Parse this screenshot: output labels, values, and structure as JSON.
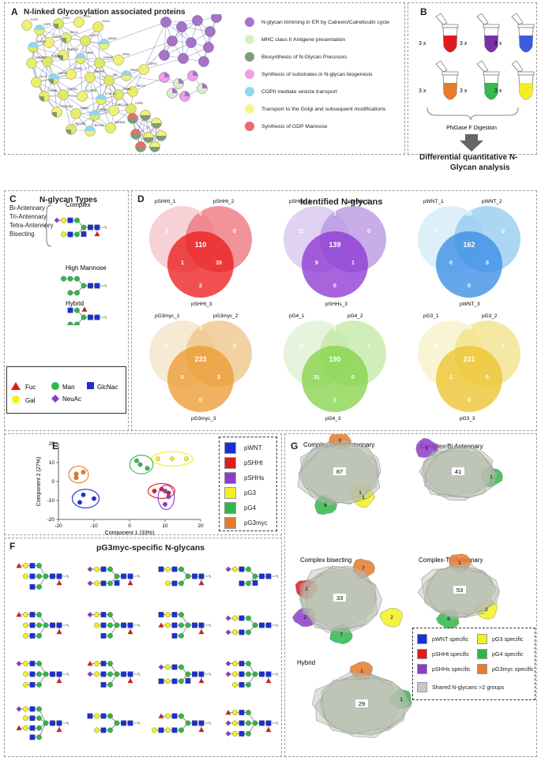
{
  "panelA": {
    "label": "A",
    "title": "N-linked Glycosylation associated proteins",
    "legend": [
      {
        "color": "#a574c9",
        "text": "N-glycan trimming in ER by Calrexin/Calreticulin cycle"
      },
      {
        "color": "#d9f0c6",
        "text": "MHC class II Antigene presentation"
      },
      {
        "color": "#7f9c78",
        "text": "Biosynthesis of N-Glycan Precusors"
      },
      {
        "color": "#ee9fe6",
        "text": "Synthesis of substrates in N-glycan biogenesis"
      },
      {
        "color": "#8fd6ee",
        "text": "COPII mediate vesicle transport"
      },
      {
        "color": "#f4f58a",
        "text": "Transport to the Golgi and subsequent modifications"
      },
      {
        "color": "#ee6b6b",
        "text": "Synthesis of GDP Mannose"
      }
    ],
    "nodes": [
      "FUT8",
      "COPE",
      "COG7",
      "COG4",
      "COG3",
      "FUCA2",
      "MAN1",
      "SEL1L",
      "UGGT1",
      "MOGS",
      "MAN5B1",
      "EDEM1",
      "PRKCSH",
      "TUBA3",
      "GANAB",
      "DPM1",
      "ALG2",
      "GMPPA",
      "DUS1",
      "GMPPB",
      "MPI",
      "PMM2",
      "CAPZB",
      "CAPZA1",
      "ACTR1A",
      "DYNC1I1",
      "TUBB4",
      "SYNC3L2",
      "LMAN1",
      "LMAN2",
      "SEC24C",
      "SEC13",
      "SEC23A",
      "SEC31A",
      "MAN1A2",
      "COPB",
      "COPG1"
    ]
  },
  "panelB": {
    "label": "B",
    "replicates": [
      "3 x",
      "3 x",
      "3 x",
      "3 x",
      "3 x",
      "3 x"
    ],
    "digestion": "PNGase F Digestion",
    "result_line1": "Differential quantitative N-",
    "result_line2": "Glycan analysis",
    "tube_colors": [
      "#e01b1b",
      "#7b2fa8",
      "#3a5ce0",
      "#e77a2b",
      "#37b84a",
      "#f4f01f"
    ]
  },
  "panelC": {
    "label": "C",
    "title": "N-glycan Types",
    "complex_types": [
      "Bi-Antennary",
      "Tri-Antennary",
      "Tetra-Antennary",
      "Bisecting"
    ],
    "complex_label": "Complex",
    "high_mannose_label": "High Mannose",
    "hybrid_label": "Hybrid",
    "symbols": [
      {
        "name": "Fuc",
        "color": "#e01b1b",
        "shape": "triangle"
      },
      {
        "name": "Man",
        "color": "#2fb84a",
        "shape": "circle"
      },
      {
        "name": "GlcNac",
        "color": "#1a2fd6",
        "shape": "square"
      },
      {
        "name": "Gal",
        "color": "#f4f01f",
        "shape": "circle"
      },
      {
        "name": "NeuAc",
        "color": "#8e3bc8",
        "shape": "diamond"
      }
    ]
  },
  "panelD": {
    "label": "D",
    "title": "Identified N-glycans",
    "venns": [
      {
        "s1": "pSHHt_1",
        "s2": "pSHHt_2",
        "s3": "pSHHt_3",
        "v": [
          "0",
          "0",
          "0",
          "110",
          "1",
          "35",
          "2"
        ],
        "c1": "#f4c9cf",
        "c2": "#ee6f78",
        "c3": "#ec1f1f"
      },
      {
        "s1": "pSHHs_1",
        "s2": "pSHHs_2",
        "s3": "pSHHs_3",
        "v": [
          "11",
          "3",
          "0",
          "139",
          "9",
          "1",
          "0"
        ],
        "c1": "#dcc9f0",
        "c2": "#b592e0",
        "c3": "#8d3ad4"
      },
      {
        "s1": "pWNT_1",
        "s2": "pWNT_2",
        "s3": "pWNT_3",
        "v": [
          "0",
          "29",
          "0",
          "162",
          "0",
          "0",
          "0"
        ],
        "c1": "#d7ecf7",
        "c2": "#8fc9ef",
        "c3": "#3b8ee6"
      },
      {
        "s1": "pG3myc_1",
        "s2": "pG3myc_2",
        "s3": "pG3myc_3",
        "v": [
          "0",
          "3",
          "0",
          "233",
          "0",
          "3",
          "0"
        ],
        "c1": "#f5e6cc",
        "c2": "#edc384",
        "c3": "#ec9b33"
      },
      {
        "s1": "pG4_1",
        "s2": "pG4_2",
        "s3": "pG4_3",
        "v": [
          "16",
          "0",
          "1",
          "190",
          "31",
          "0",
          "1"
        ],
        "c1": "#e3f2d7",
        "c2": "#c0e8a0",
        "c3": "#86d44a"
      },
      {
        "s1": "pG3_1",
        "s2": "pG3_2",
        "s3": "pG3_3",
        "v": [
          "4",
          "29",
          "1",
          "231",
          "1",
          "0",
          "0"
        ],
        "c1": "#f8f3cc",
        "c2": "#f2e085",
        "c3": "#edc42f"
      }
    ]
  },
  "panelE": {
    "label": "E",
    "xlabel": "Component 1 (33%)",
    "ylabel": "Component 2 (27%)",
    "xticks": [
      "-20",
      "-10",
      "0",
      "10",
      "20"
    ],
    "yticks": [
      "-20",
      "-10",
      "0",
      "10",
      "20"
    ],
    "legend": [
      {
        "name": "pWNT",
        "color": "#1a2fd6"
      },
      {
        "name": "pSHHt",
        "color": "#e01b1b"
      },
      {
        "name": "pSHHs",
        "color": "#8e3bc8"
      },
      {
        "name": "pG3",
        "color": "#f4f01f"
      },
      {
        "name": "pG4",
        "color": "#2fb84a"
      },
      {
        "name": "pG3myc",
        "color": "#e77a2b"
      }
    ]
  },
  "chart_data": {
    "type": "scatter",
    "title": "",
    "xlabel": "Component 1 (33%)",
    "ylabel": "Component 2 (27%)",
    "xlim": [
      -20,
      20
    ],
    "ylim": [
      -20,
      20
    ],
    "series": [
      {
        "name": "pWNT",
        "color": "#1a2fd6",
        "x": [
          -13,
          -10,
          -14
        ],
        "y": [
          -7,
          -9,
          -11
        ]
      },
      {
        "name": "pSHHt",
        "color": "#e01b1b",
        "x": [
          7,
          9,
          11
        ],
        "y": [
          -5,
          -4,
          -6
        ]
      },
      {
        "name": "pSHHs",
        "color": "#8e3bc8",
        "x": [
          10,
          11,
          10
        ],
        "y": [
          -5,
          -8,
          -12
        ]
      },
      {
        "name": "pG3",
        "color": "#f4f01f",
        "x": [
          8,
          12,
          16
        ],
        "y": [
          12,
          12,
          12
        ]
      },
      {
        "name": "pG4",
        "color": "#2fb84a",
        "x": [
          2,
          3,
          5
        ],
        "y": [
          11,
          9,
          7
        ]
      },
      {
        "name": "pG3myc",
        "color": "#e77a2b",
        "x": [
          -15,
          -13,
          -15
        ],
        "y": [
          4,
          5,
          2
        ]
      }
    ]
  },
  "panelF": {
    "label": "F",
    "title": "pG3myc-specific N-glycans"
  },
  "panelG": {
    "label": "G",
    "groups": [
      {
        "title": "Complex-Tetra Antennary",
        "main": "87",
        "extras": [
          "3",
          "6",
          "1",
          "1"
        ]
      },
      {
        "title": "Complex-Bi Antennary",
        "main": "41",
        "extras": [
          "1",
          "1"
        ]
      },
      {
        "title": "Complex bisecting",
        "main": "33",
        "extras": [
          "7",
          "1",
          "2",
          "2",
          "7"
        ]
      },
      {
        "title": "Complex-Tri Antennary",
        "main": "53",
        "extras": [
          "1",
          "2",
          "6"
        ]
      },
      {
        "title": "Hybrid",
        "main": "29",
        "extras": [
          "1",
          "1"
        ]
      }
    ],
    "legend": [
      {
        "name": "pWNT specific",
        "color": "#1a2fd6"
      },
      {
        "name": "pG3 specific",
        "color": "#f4f01f"
      },
      {
        "name": "pSHHt specific",
        "color": "#e01b1b"
      },
      {
        "name": "pG4 specific",
        "color": "#2fb84a"
      },
      {
        "name": "pSHHs specific",
        "color": "#8e3bc8"
      },
      {
        "name": "pG3myc specific",
        "color": "#e77a2b"
      },
      {
        "name": "Shared N-glycans >2 groups",
        "color": "#c8c8c8"
      }
    ]
  }
}
